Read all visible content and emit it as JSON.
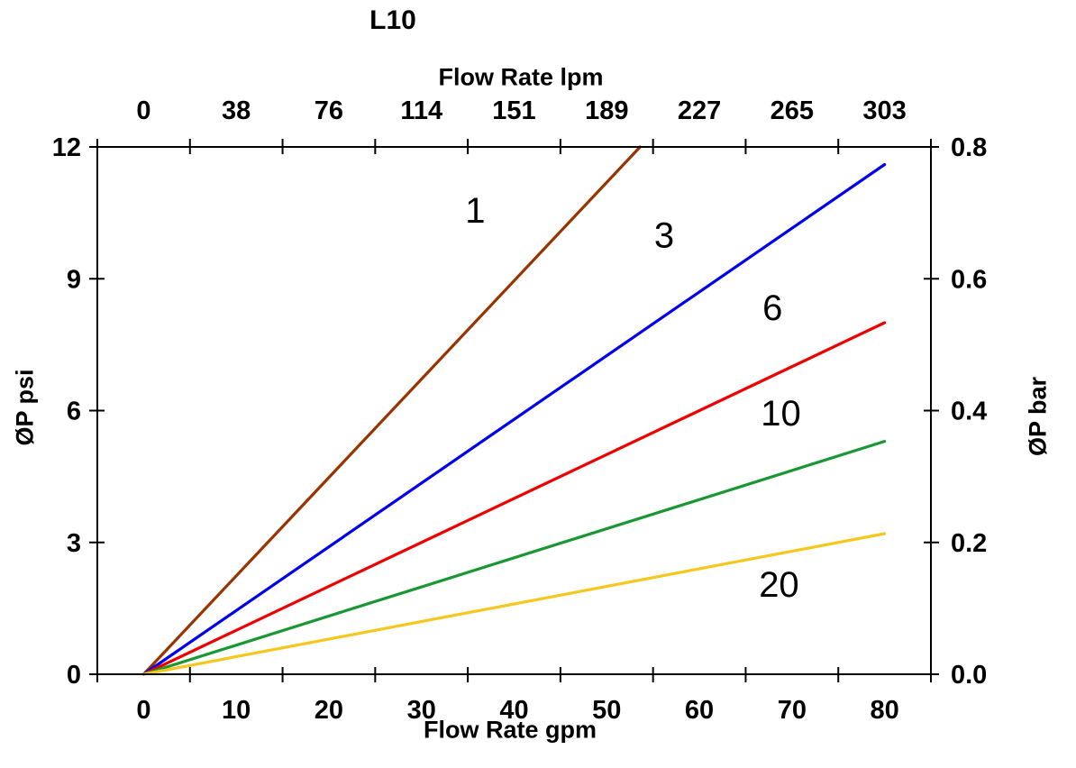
{
  "chart_data": {
    "type": "line",
    "title": "L10",
    "grid": false,
    "legend": "none",
    "background": "#ffffff",
    "axis_color": "#000000",
    "axes": {
      "top": {
        "label": "Flow Rate lpm",
        "tick_labels": [
          "0",
          "38",
          "76",
          "114",
          "151",
          "189",
          "227",
          "265",
          "303"
        ]
      },
      "bottom": {
        "label": "Flow Rate gpm",
        "tick_labels": [
          "0",
          "10",
          "20",
          "30",
          "40",
          "50",
          "60",
          "70",
          "80"
        ],
        "range": [
          0,
          80
        ]
      },
      "left": {
        "label": "ØP psi",
        "tick_labels": [
          "0",
          "3",
          "6",
          "9",
          "12"
        ],
        "tick_values": [
          0,
          3,
          6,
          9,
          12
        ],
        "range": [
          0,
          12
        ]
      },
      "right": {
        "label": "ØP bar",
        "tick_labels": [
          "0.0",
          "0.2",
          "0.4",
          "0.6",
          "0.8"
        ],
        "range": [
          0,
          0.8
        ]
      }
    },
    "series": [
      {
        "name": "1",
        "color": "#993300",
        "x_gpm": [
          0,
          53.6
        ],
        "y_psi": [
          0,
          12
        ],
        "label": {
          "text": "1",
          "x_gpm": 35.8,
          "y_psi": 10.56
        }
      },
      {
        "name": "3",
        "color": "#0000EE",
        "x_gpm": [
          0,
          80
        ],
        "y_psi": [
          0,
          11.6
        ],
        "label": {
          "text": "3",
          "x_gpm": 56.2,
          "y_psi": 10.0
        }
      },
      {
        "name": "6",
        "color": "#EE0000",
        "x_gpm": [
          0,
          80
        ],
        "y_psi": [
          0,
          8.0
        ],
        "label": {
          "text": "6",
          "x_gpm": 67.9,
          "y_psi": 8.35
        }
      },
      {
        "name": "10",
        "color": "#199732",
        "x_gpm": [
          0,
          80
        ],
        "y_psi": [
          0,
          5.3
        ],
        "label": {
          "text": "10",
          "x_gpm": 68.8,
          "y_psi": 5.95
        }
      },
      {
        "name": "20",
        "color": "#F6C71C",
        "x_gpm": [
          0,
          80
        ],
        "y_psi": [
          0,
          3.2
        ],
        "label": {
          "text": "20",
          "x_gpm": 68.6,
          "y_psi": 2.05
        }
      }
    ]
  }
}
